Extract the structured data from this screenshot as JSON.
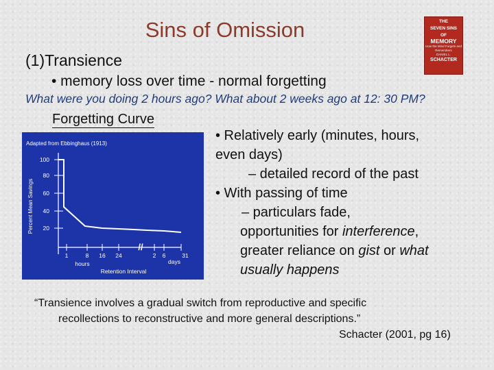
{
  "slide": {
    "title": "Sins of Omission",
    "heading": "(1)Transience",
    "bullet1": "• memory loss over time - normal forgetting",
    "question": "What were you doing 2 hours ago? What about 2 weeks ago at 12: 30 PM?"
  },
  "book": {
    "line1": "THE",
    "line2": "SEVEN SINS",
    "line3": "OF",
    "title": "MEMORY",
    "subtitle": "How the Mind Forgets and Remembers",
    "author_first": "DANIEL L.",
    "author_last": "SCHACTER"
  },
  "figure": {
    "label": "Forgetting Curve",
    "caption": "Adapted from Ebbinghaus (1913)",
    "ylabel": "Percent Mean Savings",
    "xlabel": "Retention Interval",
    "yticks": [
      "100",
      "80",
      "60",
      "40",
      "20"
    ],
    "xticks_hours": [
      "1",
      "8",
      "16",
      "24"
    ],
    "xticks_days": [
      "2",
      "6",
      "31"
    ],
    "hours_label": "hours",
    "days_label": "days",
    "break_mark": "//",
    "colors": {
      "background": "#1d34a8",
      "line": "#ffffff"
    }
  },
  "right": {
    "b1a": "• Relatively early (minutes, hours,",
    "b1b": "even days)",
    "b1c": "– detailed record of the past",
    "b2a": "• With passing of time",
    "b2b": "– particulars fade,",
    "b2c_1": "opportunities for ",
    "b2c_2": "interference",
    "b2c_3": ",",
    "b2d_1": "greater reliance on ",
    "b2d_2": "gist",
    "b2d_3": " or ",
    "b2d_4": "what",
    "b2e": "usually happens"
  },
  "quote": {
    "line1": "“Transience involves a gradual switch from reproductive and specific",
    "line2": "recollections to reconstructive and more general descriptions.”",
    "citation": "Schacter (2001, pg 16)"
  }
}
